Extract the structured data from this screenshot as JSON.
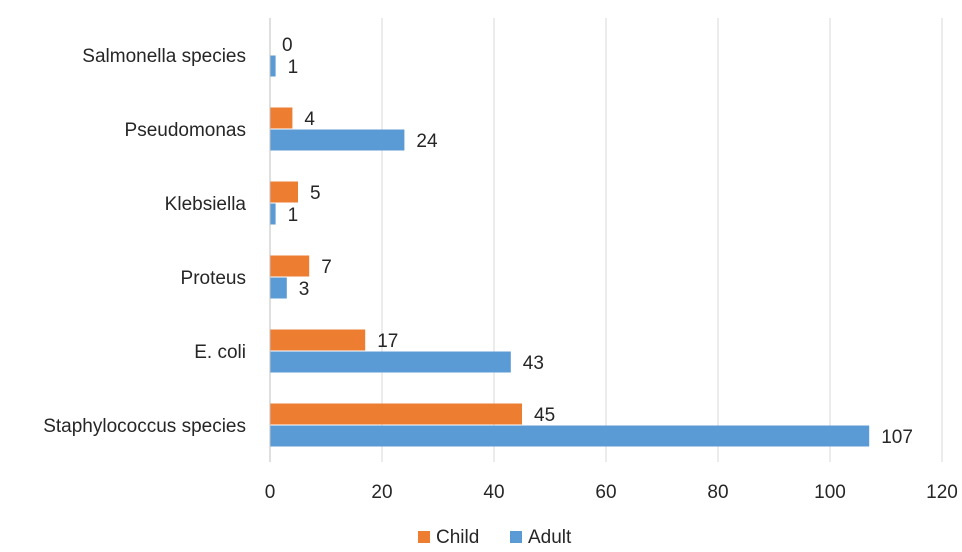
{
  "chart_data": {
    "type": "bar",
    "orientation": "horizontal",
    "title": "",
    "xlabel": "",
    "ylabel": "",
    "categories": [
      "Salmonella species",
      "Pseudomonas",
      "Klebsiella",
      "Proteus",
      "E. coli",
      "Staphylococcus species"
    ],
    "series": [
      {
        "name": "Child",
        "color": "#ED7D31",
        "values": [
          0,
          4,
          5,
          7,
          17,
          45
        ]
      },
      {
        "name": "Adult",
        "color": "#5B9BD5",
        "values": [
          1,
          24,
          1,
          3,
          43,
          107
        ]
      }
    ],
    "xlim": [
      0,
      120
    ],
    "xticks": [
      0,
      20,
      40,
      60,
      80,
      100,
      120
    ],
    "xtick_labels": [
      "0",
      "20",
      "40",
      "60",
      "80",
      "100",
      "120"
    ],
    "grid": "vertical",
    "legend": {
      "position": "bottom",
      "entries": [
        "Child",
        "Adult"
      ]
    }
  }
}
